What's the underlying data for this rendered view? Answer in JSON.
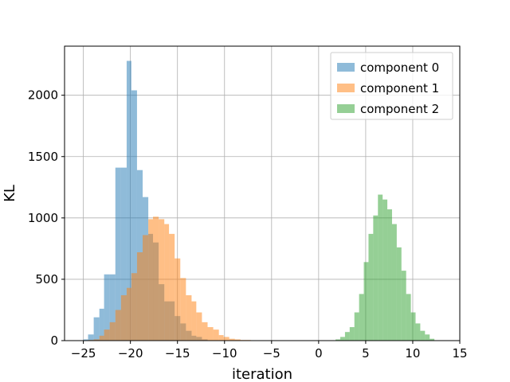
{
  "chart_data": {
    "type": "bar",
    "title": "",
    "xlabel": "iteration",
    "ylabel": "KL",
    "xlim": [
      -27,
      15
    ],
    "ylim": [
      0,
      2400
    ],
    "xticks": [
      "−25",
      "−20",
      "−15",
      "−10",
      "−5",
      "0",
      "5",
      "10",
      "15"
    ],
    "xtick_values": [
      -25,
      -20,
      -15,
      -10,
      -5,
      0,
      5,
      10,
      15
    ],
    "yticks": [
      "0",
      "500",
      "1000",
      "1500",
      "2000"
    ],
    "ytick_values": [
      0,
      500,
      1000,
      1500,
      2000
    ],
    "grid": true,
    "legend_position": "top-right",
    "series": [
      {
        "name": "component 0",
        "color": "#1f77b4",
        "opacity": 0.5,
        "bins": [
          {
            "x0": -25.0,
            "x1": -24.5,
            "y": 10
          },
          {
            "x0": -24.5,
            "x1": -23.9,
            "y": 50
          },
          {
            "x0": -23.9,
            "x1": -23.3,
            "y": 190
          },
          {
            "x0": -23.3,
            "x1": -22.8,
            "y": 260
          },
          {
            "x0": -22.8,
            "x1": -22.2,
            "y": 540
          },
          {
            "x0": -22.2,
            "x1": -21.6,
            "y": 540
          },
          {
            "x0": -21.6,
            "x1": -21.0,
            "y": 1410
          },
          {
            "x0": -21.0,
            "x1": -20.4,
            "y": 1410
          },
          {
            "x0": -20.4,
            "x1": -19.9,
            "y": 2280
          },
          {
            "x0": -19.9,
            "x1": -19.3,
            "y": 2040
          },
          {
            "x0": -19.3,
            "x1": -18.7,
            "y": 1390
          },
          {
            "x0": -18.7,
            "x1": -18.1,
            "y": 1170
          },
          {
            "x0": -18.1,
            "x1": -17.6,
            "y": 870
          },
          {
            "x0": -17.6,
            "x1": -17.0,
            "y": 800
          },
          {
            "x0": -17.0,
            "x1": -16.4,
            "y": 460
          },
          {
            "x0": -16.4,
            "x1": -15.9,
            "y": 320
          },
          {
            "x0": -15.9,
            "x1": -15.3,
            "y": 320
          },
          {
            "x0": -15.3,
            "x1": -14.7,
            "y": 200
          },
          {
            "x0": -14.7,
            "x1": -14.1,
            "y": 140
          },
          {
            "x0": -14.1,
            "x1": -13.5,
            "y": 80
          },
          {
            "x0": -13.5,
            "x1": -13.0,
            "y": 40
          },
          {
            "x0": -13.0,
            "x1": -12.4,
            "y": 30
          },
          {
            "x0": -12.4,
            "x1": -11.8,
            "y": 10
          }
        ]
      },
      {
        "name": "component 1",
        "color": "#ff7f0e",
        "opacity": 0.5,
        "bins": [
          {
            "x0": -24.5,
            "x1": -23.9,
            "y": 5
          },
          {
            "x0": -23.9,
            "x1": -23.3,
            "y": 10
          },
          {
            "x0": -23.3,
            "x1": -22.8,
            "y": 40
          },
          {
            "x0": -22.8,
            "x1": -22.2,
            "y": 90
          },
          {
            "x0": -22.2,
            "x1": -21.6,
            "y": 150
          },
          {
            "x0": -21.6,
            "x1": -21.0,
            "y": 250
          },
          {
            "x0": -21.0,
            "x1": -20.4,
            "y": 370
          },
          {
            "x0": -20.4,
            "x1": -19.9,
            "y": 430
          },
          {
            "x0": -19.9,
            "x1": -19.3,
            "y": 550
          },
          {
            "x0": -19.3,
            "x1": -18.7,
            "y": 720
          },
          {
            "x0": -18.7,
            "x1": -18.1,
            "y": 860
          },
          {
            "x0": -18.1,
            "x1": -17.6,
            "y": 990
          },
          {
            "x0": -17.6,
            "x1": -17.0,
            "y": 1010
          },
          {
            "x0": -17.0,
            "x1": -16.4,
            "y": 990
          },
          {
            "x0": -16.4,
            "x1": -15.9,
            "y": 950
          },
          {
            "x0": -15.9,
            "x1": -15.3,
            "y": 870
          },
          {
            "x0": -15.3,
            "x1": -14.7,
            "y": 670
          },
          {
            "x0": -14.7,
            "x1": -14.1,
            "y": 510
          },
          {
            "x0": -14.1,
            "x1": -13.5,
            "y": 370
          },
          {
            "x0": -13.5,
            "x1": -13.0,
            "y": 320
          },
          {
            "x0": -13.0,
            "x1": -12.4,
            "y": 230
          },
          {
            "x0": -12.4,
            "x1": -11.8,
            "y": 150
          },
          {
            "x0": -11.8,
            "x1": -11.2,
            "y": 110
          },
          {
            "x0": -11.2,
            "x1": -10.6,
            "y": 90
          },
          {
            "x0": -10.6,
            "x1": -10.1,
            "y": 45
          },
          {
            "x0": -10.1,
            "x1": -9.5,
            "y": 30
          },
          {
            "x0": -9.5,
            "x1": -8.9,
            "y": 15
          },
          {
            "x0": -8.9,
            "x1": -8.3,
            "y": 10
          },
          {
            "x0": -8.3,
            "x1": -7.8,
            "y": 5
          },
          {
            "x0": -7.8,
            "x1": -7.2,
            "y": 5
          },
          {
            "x0": -7.2,
            "x1": -6.6,
            "y": 3
          },
          {
            "x0": -6.6,
            "x1": -6.0,
            "y": 3
          },
          {
            "x0": -6.0,
            "x1": -5.5,
            "y": 2
          }
        ]
      },
      {
        "name": "component 2",
        "color": "#2ca02c",
        "opacity": 0.5,
        "bins": [
          {
            "x0": 1.8,
            "x1": 2.3,
            "y": 10
          },
          {
            "x0": 2.3,
            "x1": 2.8,
            "y": 30
          },
          {
            "x0": 2.8,
            "x1": 3.3,
            "y": 70
          },
          {
            "x0": 3.3,
            "x1": 3.8,
            "y": 110
          },
          {
            "x0": 3.8,
            "x1": 4.3,
            "y": 230
          },
          {
            "x0": 4.3,
            "x1": 4.8,
            "y": 380
          },
          {
            "x0": 4.8,
            "x1": 5.3,
            "y": 640
          },
          {
            "x0": 5.3,
            "x1": 5.8,
            "y": 870
          },
          {
            "x0": 5.8,
            "x1": 6.3,
            "y": 1020
          },
          {
            "x0": 6.3,
            "x1": 6.8,
            "y": 1190
          },
          {
            "x0": 6.8,
            "x1": 7.3,
            "y": 1150
          },
          {
            "x0": 7.3,
            "x1": 7.8,
            "y": 1070
          },
          {
            "x0": 7.8,
            "x1": 8.3,
            "y": 950
          },
          {
            "x0": 8.3,
            "x1": 8.8,
            "y": 760
          },
          {
            "x0": 8.8,
            "x1": 9.3,
            "y": 570
          },
          {
            "x0": 9.3,
            "x1": 9.8,
            "y": 380
          },
          {
            "x0": 9.8,
            "x1": 10.3,
            "y": 230
          },
          {
            "x0": 10.3,
            "x1": 10.8,
            "y": 140
          },
          {
            "x0": 10.8,
            "x1": 11.3,
            "y": 80
          },
          {
            "x0": 11.3,
            "x1": 11.8,
            "y": 50
          },
          {
            "x0": 11.8,
            "x1": 12.3,
            "y": 15
          }
        ]
      }
    ]
  }
}
